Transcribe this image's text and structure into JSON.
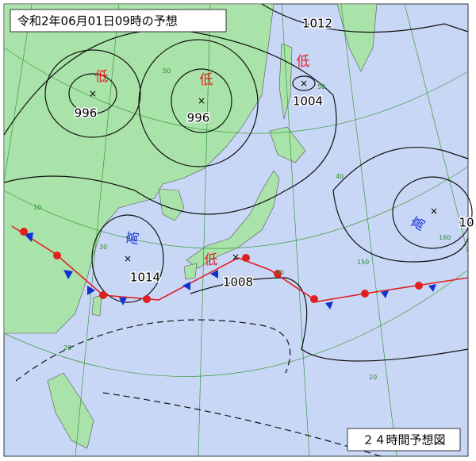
{
  "header": {
    "title": "令和2年06月01日09時の予想"
  },
  "footer": {
    "label": "２４時間予想図"
  },
  "systems": [
    {
      "symbol": "低",
      "pressure": "996"
    },
    {
      "symbol": "低",
      "pressure": "996"
    },
    {
      "symbol": "低",
      "pressure": "1004"
    },
    {
      "symbol": "高",
      "pressure": "10"
    },
    {
      "symbol": "高",
      "pressure": "1014"
    },
    {
      "symbol": "低",
      "pressure": "1008"
    }
  ],
  "isobar_labels": [
    "1012"
  ],
  "grid_labels": [
    "50",
    "40",
    "30",
    "20",
    "10",
    "150",
    "160",
    "20",
    "40",
    "50"
  ]
}
